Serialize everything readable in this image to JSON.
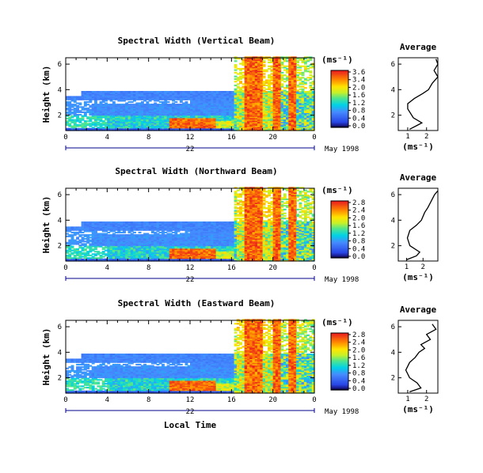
{
  "chart_data": [
    {
      "type": "heatmap",
      "title": "Spectral Width (Vertical Beam)",
      "ylabel": "Height (km)",
      "xlabel": "",
      "x_ticks": [
        "0",
        "4",
        "8",
        "12",
        "16",
        "20",
        "0"
      ],
      "y_ticks": [
        "2",
        "4",
        "6"
      ],
      "xlim": [
        0,
        24
      ],
      "ylim": [
        0.8,
        6.5
      ],
      "date_day": "22",
      "date_label": "May 1998",
      "colorbar": {
        "unit": "(ms⁻¹)",
        "ticks": [
          "3.6",
          "3.4",
          "2.0",
          "1.6",
          "1.2",
          "0.8",
          "0.4",
          "0.0"
        ],
        "max": 3.6
      },
      "avg_profile": {
        "title": "Average",
        "xlabel": "(ms⁻¹)",
        "x_ticks": [
          "1",
          "2"
        ],
        "xlim": [
          0.5,
          2.6
        ],
        "y_ticks": [
          "2",
          "4",
          "6"
        ],
        "points": [
          [
            1.1,
            0.9
          ],
          [
            1.5,
            1.2
          ],
          [
            1.75,
            1.4
          ],
          [
            1.3,
            1.8
          ],
          [
            1.0,
            2.5
          ],
          [
            1.0,
            2.9
          ],
          [
            1.35,
            3.3
          ],
          [
            1.8,
            3.7
          ],
          [
            2.1,
            4.0
          ],
          [
            2.3,
            4.5
          ],
          [
            2.6,
            5.0
          ],
          [
            2.4,
            5.5
          ],
          [
            2.6,
            6.0
          ],
          [
            2.5,
            6.4
          ]
        ]
      }
    },
    {
      "type": "heatmap",
      "title": "Spectral Width (Northward Beam)",
      "ylabel": "Height (km)",
      "xlabel": "",
      "x_ticks": [
        "0",
        "4",
        "8",
        "12",
        "16",
        "20",
        "0"
      ],
      "y_ticks": [
        "2",
        "4",
        "6"
      ],
      "xlim": [
        0,
        24
      ],
      "ylim": [
        0.8,
        6.5
      ],
      "date_day": "22",
      "date_label": "May 1998",
      "colorbar": {
        "unit": "(ms⁻¹)",
        "ticks": [
          "2.8",
          "2.4",
          "2.0",
          "1.6",
          "1.2",
          "0.8",
          "0.4",
          "0.0"
        ],
        "max": 2.8
      },
      "avg_profile": {
        "title": "Average",
        "xlabel": "(ms⁻¹)",
        "x_ticks": [
          "1",
          "2"
        ],
        "xlim": [
          0.5,
          2.9
        ],
        "y_ticks": [
          "2",
          "4",
          "6"
        ],
        "points": [
          [
            1.0,
            0.9
          ],
          [
            1.6,
            1.2
          ],
          [
            1.8,
            1.5
          ],
          [
            1.2,
            2.0
          ],
          [
            1.05,
            2.6
          ],
          [
            1.2,
            3.2
          ],
          [
            1.6,
            3.6
          ],
          [
            1.9,
            4.0
          ],
          [
            2.1,
            4.6
          ],
          [
            2.3,
            5.0
          ],
          [
            2.5,
            5.5
          ],
          [
            2.7,
            6.0
          ],
          [
            2.9,
            6.3
          ]
        ]
      }
    },
    {
      "type": "heatmap",
      "title": "Spectral Width (Eastward Beam)",
      "ylabel": "Height (km)",
      "xlabel": "Local Time",
      "x_ticks": [
        "0",
        "4",
        "8",
        "12",
        "16",
        "20",
        "0"
      ],
      "y_ticks": [
        "2",
        "4",
        "6"
      ],
      "xlim": [
        0,
        24
      ],
      "ylim": [
        0.8,
        6.5
      ],
      "date_day": "22",
      "date_label": "May 1998",
      "colorbar": {
        "unit": "(ms⁻¹)",
        "ticks": [
          "2.8",
          "2.4",
          "2.0",
          "1.6",
          "1.2",
          "0.8",
          "0.4",
          "0.0"
        ],
        "max": 2.8
      },
      "avg_profile": {
        "title": "Average",
        "xlabel": "(ms⁻¹)",
        "x_ticks": [
          "1",
          "2"
        ],
        "xlim": [
          0.5,
          2.6
        ],
        "y_ticks": [
          "2",
          "4",
          "6"
        ],
        "points": [
          [
            1.1,
            0.9
          ],
          [
            1.7,
            1.2
          ],
          [
            1.5,
            1.6
          ],
          [
            1.1,
            2.0
          ],
          [
            0.9,
            2.6
          ],
          [
            1.1,
            3.2
          ],
          [
            1.4,
            3.6
          ],
          [
            1.6,
            4.0
          ],
          [
            1.9,
            4.3
          ],
          [
            1.7,
            4.6
          ],
          [
            2.2,
            5.0
          ],
          [
            2.0,
            5.4
          ],
          [
            2.5,
            5.8
          ],
          [
            2.3,
            6.2
          ]
        ]
      }
    }
  ]
}
